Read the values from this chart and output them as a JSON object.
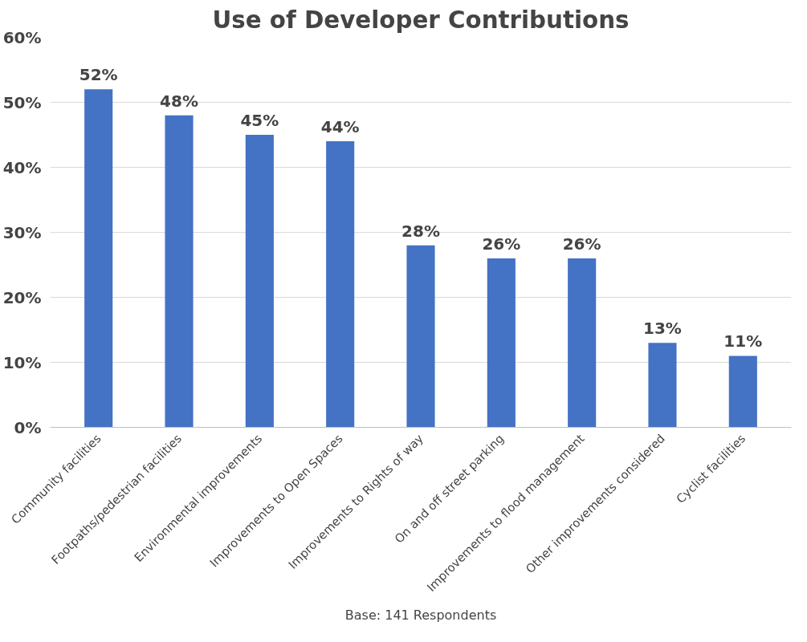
{
  "chart_data": {
    "type": "bar",
    "title": "Use of Developer Contributions",
    "categories": [
      "Community facilities",
      "Footpaths/pedestrian facilities",
      "Environmental improvements",
      "Improvements to Open Spaces",
      "Improvements to Rights of way",
      "On and off street parking",
      "Improvements to flood management",
      "Other improvements considered",
      "Cyclist facilities"
    ],
    "values": [
      52,
      48,
      45,
      44,
      28,
      26,
      26,
      13,
      11
    ],
    "value_labels": [
      "52%",
      "48%",
      "45%",
      "44%",
      "28%",
      "26%",
      "26%",
      "13%",
      "11%"
    ],
    "color": "#4472c4",
    "ylim": [
      0,
      60
    ],
    "yticks": [
      {
        "value": 0,
        "label": "0%"
      },
      {
        "value": 10,
        "label": "10%"
      },
      {
        "value": 20,
        "label": "20%"
      },
      {
        "value": 30,
        "label": "30%"
      },
      {
        "value": 40,
        "label": "40%"
      },
      {
        "value": 50,
        "label": "50%"
      },
      {
        "value": 60,
        "label": "60%"
      }
    ],
    "grid": "y",
    "annotations": [
      "Base: 141 Respondents"
    ]
  }
}
